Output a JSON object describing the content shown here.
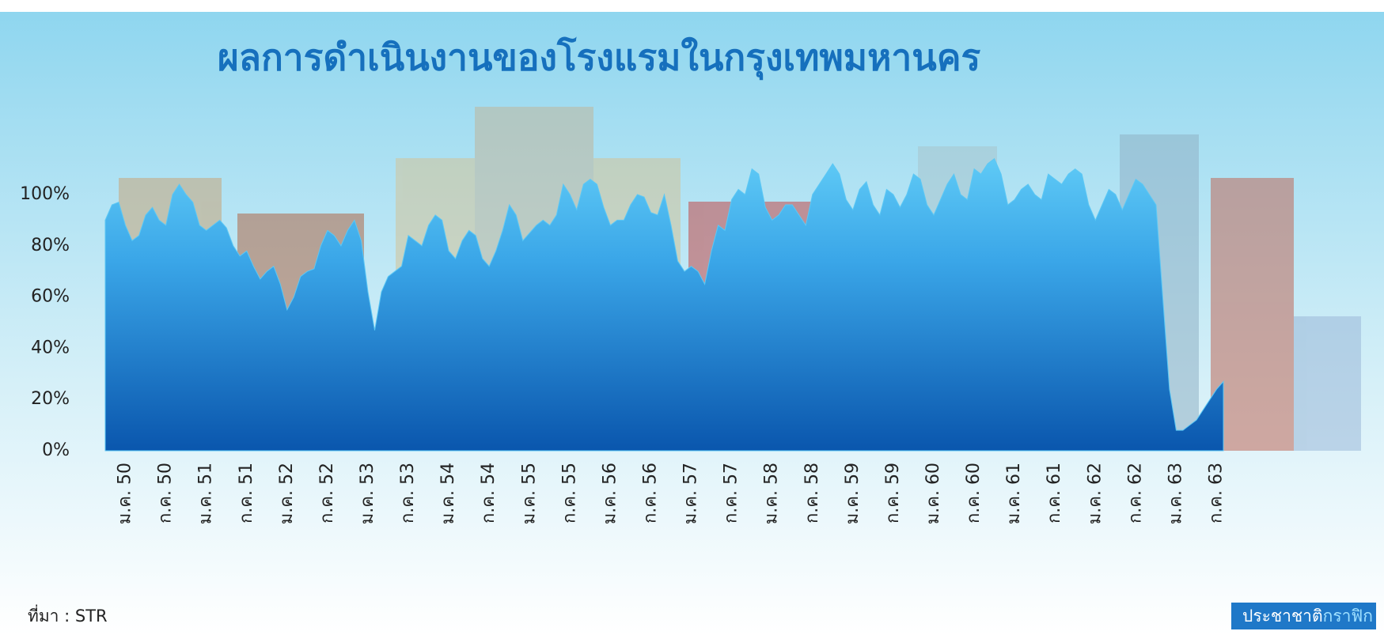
{
  "chart_data": {
    "type": "area",
    "title": "ผลการดำเนินงานของโรงแรมในกรุงเทพมหานคร",
    "source": "ที่มา : STR",
    "brand": [
      "ประชาชาติ",
      "กราฟิก"
    ],
    "categories": [
      null,
      null,
      null,
      "ม.ค. 50",
      null,
      null,
      null,
      null,
      null,
      "ก.ค. 50",
      null,
      null,
      null,
      null,
      null,
      "ม.ค. 51",
      null,
      null,
      null,
      null,
      null,
      "ก.ค. 51",
      null,
      null,
      null,
      null,
      null,
      "ม.ค. 52",
      null,
      null,
      null,
      null,
      null,
      "ก.ค. 52",
      null,
      null,
      null,
      null,
      null,
      "ม.ค. 53",
      null,
      null,
      null,
      null,
      null,
      "ก.ค. 53",
      null,
      null,
      null,
      null,
      null,
      "ม.ค. 54",
      null,
      null,
      null,
      null,
      null,
      "ก.ค. 54",
      null,
      null,
      null,
      null,
      null,
      "ม.ค. 55",
      null,
      null,
      null,
      null,
      null,
      "ก.ค. 55",
      null,
      null,
      null,
      null,
      null,
      "ม.ค. 56",
      null,
      null,
      null,
      null,
      null,
      "ก.ค. 56",
      null,
      null,
      null,
      null,
      null,
      "ม.ค. 57",
      null,
      null,
      null,
      null,
      null,
      "ก.ค. 57",
      null,
      null,
      null,
      null,
      null,
      "ม.ค. 58",
      null,
      null,
      null,
      null,
      null,
      "ก.ค. 58",
      null,
      null,
      null,
      null,
      null,
      "ม.ค. 59",
      null,
      null,
      null,
      null,
      null,
      "ก.ค. 59",
      null,
      null,
      null,
      null,
      null,
      "ม.ค. 60",
      null,
      null,
      null,
      null,
      null,
      "ก.ค. 60",
      null,
      null,
      null,
      null,
      null,
      "ม.ค. 61",
      null,
      null,
      null,
      null,
      null,
      "ก.ค. 61",
      null,
      null,
      null,
      null,
      null,
      "ม.ค. 62",
      null,
      null,
      null,
      null,
      null,
      "ก.ค. 62",
      null,
      null,
      null,
      null,
      null,
      "ม.ค. 63",
      null,
      null,
      null,
      null,
      null,
      "ก.ค. 63",
      null
    ],
    "values": [
      90,
      96,
      97,
      88,
      82,
      84,
      92,
      95,
      90,
      88,
      100,
      104,
      100,
      97,
      88,
      86,
      88,
      90,
      87,
      80,
      76,
      78,
      72,
      67,
      70,
      72,
      65,
      55,
      60,
      68,
      70,
      71,
      80,
      86,
      84,
      80,
      86,
      90,
      82,
      62,
      47,
      62,
      68,
      70,
      72,
      84,
      82,
      80,
      88,
      92,
      90,
      78,
      75,
      82,
      86,
      84,
      75,
      72,
      78,
      86,
      96,
      92,
      82,
      85,
      88,
      90,
      88,
      92,
      104,
      100,
      94,
      104,
      106,
      104,
      95,
      88,
      90,
      90,
      96,
      100,
      99,
      93,
      92,
      100,
      88,
      74,
      70,
      72,
      70,
      65,
      78,
      88,
      86,
      98,
      102,
      100,
      110,
      108,
      95,
      90,
      92,
      96,
      96,
      92,
      88,
      100,
      104,
      108,
      112,
      108,
      98,
      94,
      102,
      105,
      96,
      92,
      102,
      100,
      95,
      100,
      108,
      106,
      96,
      92,
      98,
      104,
      108,
      100,
      98,
      110,
      108,
      112,
      114,
      108,
      96,
      98,
      102,
      104,
      100,
      98,
      108,
      106,
      104,
      108,
      110,
      108,
      96,
      90,
      96,
      102,
      100,
      94,
      100,
      106,
      104,
      100,
      96,
      60,
      24,
      8,
      8,
      10,
      12,
      16,
      20,
      24,
      27
    ],
    "color": "#5bc8f5",
    "ylim": [
      0,
      115
    ],
    "yticks": [
      {
        "value": 0,
        "label": "0%"
      },
      {
        "value": 20,
        "label": "20%"
      },
      {
        "value": 40,
        "label": "40%"
      },
      {
        "value": 60,
        "label": "60%"
      },
      {
        "value": 80,
        "label": "80%"
      },
      {
        "value": 100,
        "label": "100%"
      }
    ],
    "grid": false
  }
}
